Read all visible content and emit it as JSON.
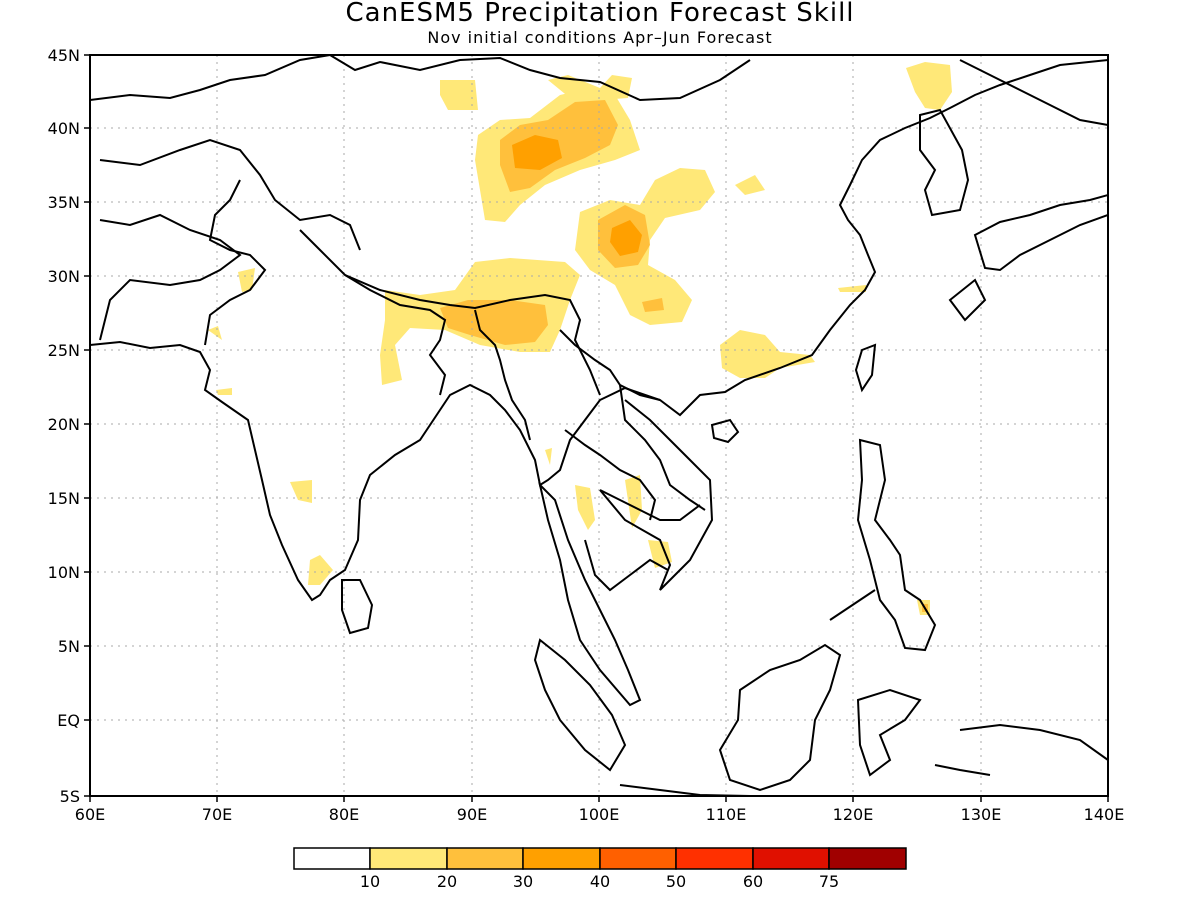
{
  "title": "CanESM5 Precipitation Forecast Skill",
  "subtitle": "Nov initial conditions  Apr–Jun Forecast",
  "axes": {
    "lat_labels": [
      "45N",
      "40N",
      "35N",
      "30N",
      "25N",
      "20N",
      "15N",
      "10N",
      "5N",
      "EQ",
      "5S"
    ],
    "lon_labels": [
      "60E",
      "70E",
      "80E",
      "90E",
      "100E",
      "110E",
      "120E",
      "130E",
      "140E"
    ]
  },
  "colorbar": {
    "colors": [
      "#ffffff",
      "#ffe878",
      "#ffc03c",
      "#ffa000",
      "#ff6000",
      "#ff3000",
      "#e01000",
      "#a00000"
    ],
    "labels": [
      "10",
      "20",
      "30",
      "40",
      "50",
      "60",
      "75"
    ]
  },
  "colors": {
    "coast": "#000000",
    "grid": "#aaaaaa"
  }
}
